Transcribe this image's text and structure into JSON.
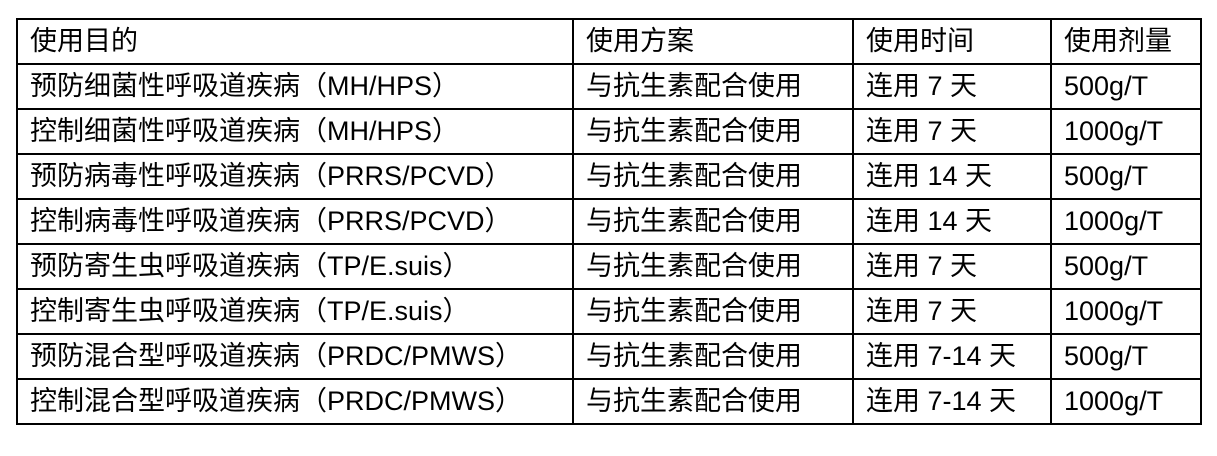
{
  "colors": {
    "border": "#000000",
    "background": "#ffffff",
    "text": "#000000"
  },
  "table": {
    "headers": [
      "使用目的",
      "使用方案",
      "使用时间",
      "使用剂量"
    ],
    "rows": [
      [
        "预防细菌性呼吸道疾病（MH/HPS）",
        "与抗生素配合使用",
        "连用 7 天",
        "500g/T"
      ],
      [
        "控制细菌性呼吸道疾病（MH/HPS）",
        "与抗生素配合使用",
        "连用 7 天",
        "1000g/T"
      ],
      [
        "预防病毒性呼吸道疾病（PRRS/PCVD）",
        "与抗生素配合使用",
        "连用 14 天",
        "500g/T"
      ],
      [
        "控制病毒性呼吸道疾病（PRRS/PCVD）",
        "与抗生素配合使用",
        "连用 14 天",
        "1000g/T"
      ],
      [
        "预防寄生虫呼吸道疾病（TP/E.suis）",
        "与抗生素配合使用",
        "连用 7 天",
        "500g/T"
      ],
      [
        "控制寄生虫呼吸道疾病（TP/E.suis）",
        "与抗生素配合使用",
        "连用 7 天",
        "1000g/T"
      ],
      [
        "预防混合型呼吸道疾病（PRDC/PMWS）",
        "与抗生素配合使用",
        "连用 7-14 天",
        "500g/T"
      ],
      [
        "控制混合型呼吸道疾病（PRDC/PMWS）",
        "与抗生素配合使用",
        "连用 7-14 天",
        "1000g/T"
      ]
    ]
  }
}
